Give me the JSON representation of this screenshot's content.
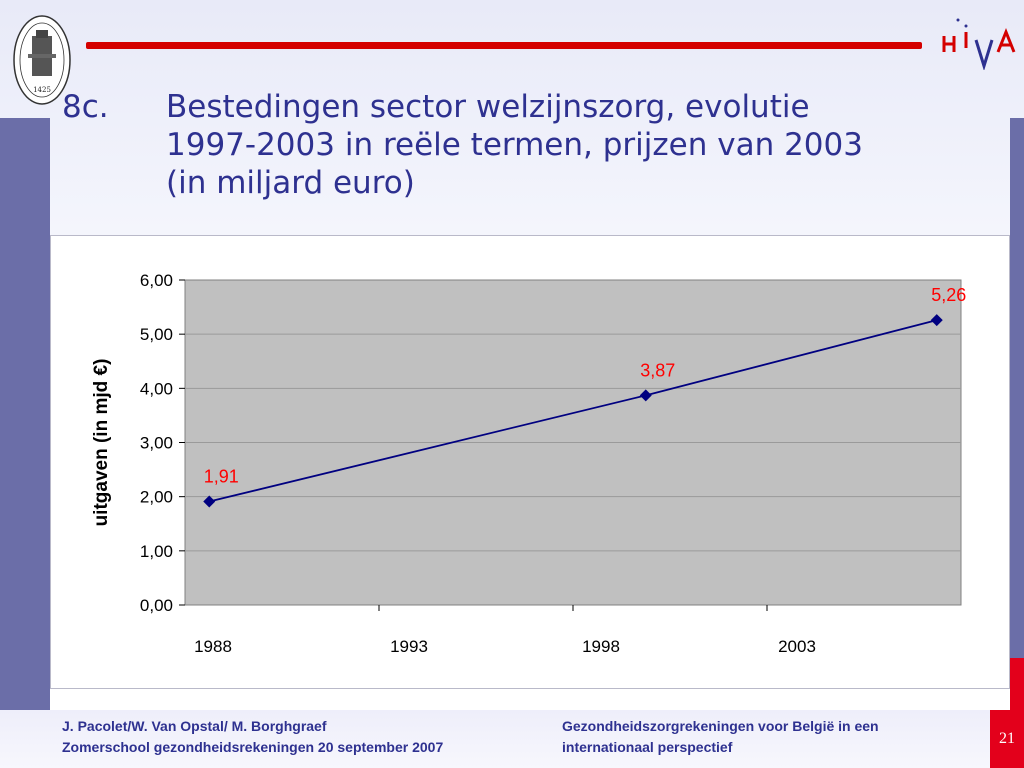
{
  "slide": {
    "number_label": "8c.",
    "title_lines": [
      "Bestedingen sector welzijnszorg, evolutie",
      "1997-2003 in reële termen, prijzen van 2003",
      "(in miljard euro)"
    ],
    "seal_year": "1425",
    "page_number": "21"
  },
  "footer": {
    "left_line1": "J. Pacolet/W. Van Opstal/ M. Borghgraef",
    "left_line2": "Zomerschool gezondheidsrekeningen 20 september 2007",
    "right_line1": "Gezondheidszorgrekeningen voor België in een",
    "right_line2": "internationaal perspectief"
  },
  "colors": {
    "title": "#2e3190",
    "accent_red": "#d40000",
    "sidebar": "#6b6ea8",
    "plot_bg": "#c0c0c0",
    "series_line": "#000080",
    "data_label": "#ff0000"
  },
  "chart_data": {
    "type": "line",
    "title": "",
    "xlabel": "",
    "ylabel": "uitgaven (in mjd €)",
    "x_tick_labels": [
      "1988",
      "1993",
      "1998",
      "2003"
    ],
    "y_tick_labels": [
      "0,00",
      "1,00",
      "2,00",
      "3,00",
      "4,00",
      "5,00",
      "6,00"
    ],
    "ylim": [
      0,
      6
    ],
    "xlim": [
      1987.5,
      2003.5
    ],
    "grid": "horizontal",
    "legend": "none",
    "series": [
      {
        "points": [
          {
            "x": 1988,
            "y": 1.91,
            "label": "1,91"
          },
          {
            "x": 1997,
            "y": 3.87,
            "label": "3,87"
          },
          {
            "x": 2003,
            "y": 5.26,
            "label": "5,26"
          }
        ]
      }
    ]
  }
}
